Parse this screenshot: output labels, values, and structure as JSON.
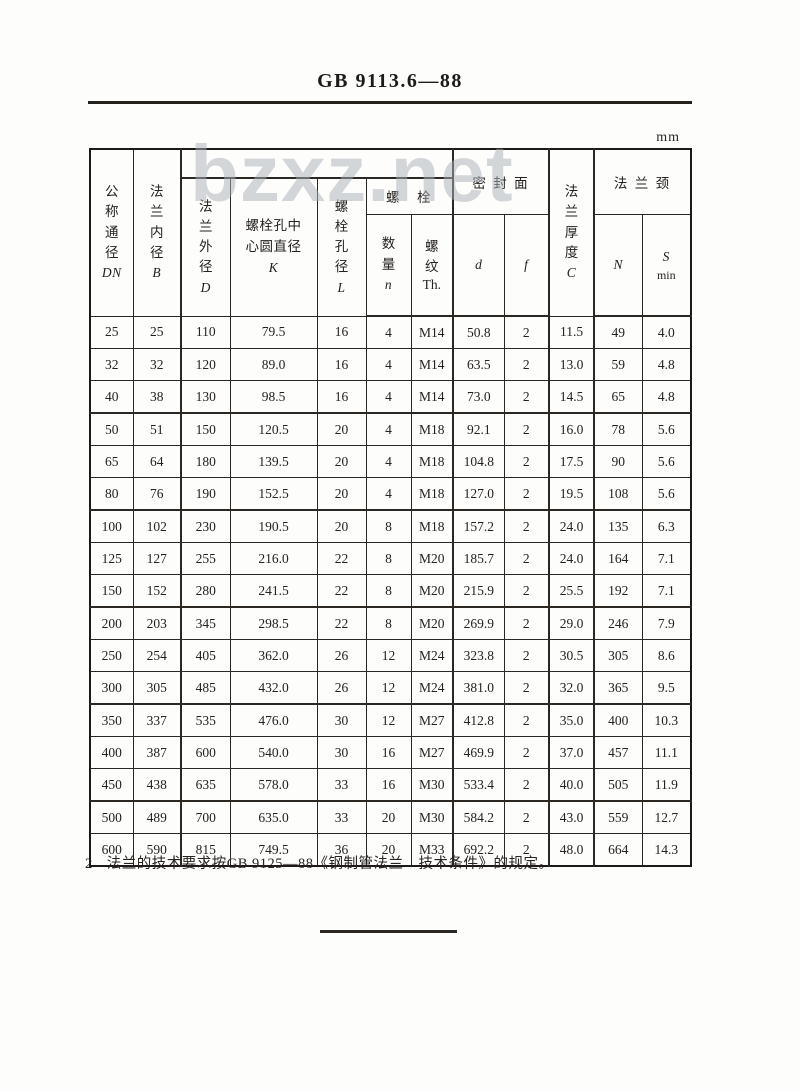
{
  "page": {
    "title": "GB 9113.6—88",
    "unit_label": "mm",
    "watermark": "bzxz.net",
    "note_number": "2",
    "note_text": "法兰的技术要求按GB 9125—88《钢制管法兰　技术条件》的规定。"
  },
  "table": {
    "headers": {
      "dn": {
        "zh": "公称通径",
        "sym": "DN"
      },
      "b": {
        "zh": "法兰内径",
        "sym": "B"
      },
      "d_outer": {
        "zh": "法兰外径",
        "sym": "D"
      },
      "k": {
        "zh_line1": "螺栓孔中",
        "zh_line2": "心圆直径",
        "sym": "K"
      },
      "l": {
        "zh": "螺栓孔径",
        "sym": "L"
      },
      "bolt_group": "螺　栓",
      "qty": {
        "zh": "数量",
        "sym": "n"
      },
      "thread": {
        "zh": "螺纹",
        "sym": "Th."
      },
      "seal_group": "密 封 面",
      "d_seal": "d",
      "f_seal": "f",
      "c": {
        "zh": "法兰厚度",
        "sym": "C"
      },
      "neck_group": "法 兰 颈",
      "n_neck": "N",
      "s": {
        "sym": "S",
        "sub": "min"
      }
    },
    "rows": [
      [
        "25",
        "25",
        "110",
        "79.5",
        "16",
        "4",
        "M14",
        "50.8",
        "2",
        "11.5",
        "49",
        "4.0"
      ],
      [
        "32",
        "32",
        "120",
        "89.0",
        "16",
        "4",
        "M14",
        "63.5",
        "2",
        "13.0",
        "59",
        "4.8"
      ],
      [
        "40",
        "38",
        "130",
        "98.5",
        "16",
        "4",
        "M14",
        "73.0",
        "2",
        "14.5",
        "65",
        "4.8"
      ],
      [
        "50",
        "51",
        "150",
        "120.5",
        "20",
        "4",
        "M18",
        "92.1",
        "2",
        "16.0",
        "78",
        "5.6"
      ],
      [
        "65",
        "64",
        "180",
        "139.5",
        "20",
        "4",
        "M18",
        "104.8",
        "2",
        "17.5",
        "90",
        "5.6"
      ],
      [
        "80",
        "76",
        "190",
        "152.5",
        "20",
        "4",
        "M18",
        "127.0",
        "2",
        "19.5",
        "108",
        "5.6"
      ],
      [
        "100",
        "102",
        "230",
        "190.5",
        "20",
        "8",
        "M18",
        "157.2",
        "2",
        "24.0",
        "135",
        "6.3"
      ],
      [
        "125",
        "127",
        "255",
        "216.0",
        "22",
        "8",
        "M20",
        "185.7",
        "2",
        "24.0",
        "164",
        "7.1"
      ],
      [
        "150",
        "152",
        "280",
        "241.5",
        "22",
        "8",
        "M20",
        "215.9",
        "2",
        "25.5",
        "192",
        "7.1"
      ],
      [
        "200",
        "203",
        "345",
        "298.5",
        "22",
        "8",
        "M20",
        "269.9",
        "2",
        "29.0",
        "246",
        "7.9"
      ],
      [
        "250",
        "254",
        "405",
        "362.0",
        "26",
        "12",
        "M24",
        "323.8",
        "2",
        "30.5",
        "305",
        "8.6"
      ],
      [
        "300",
        "305",
        "485",
        "432.0",
        "26",
        "12",
        "M24",
        "381.0",
        "2",
        "32.0",
        "365",
        "9.5"
      ],
      [
        "350",
        "337",
        "535",
        "476.0",
        "30",
        "12",
        "M27",
        "412.8",
        "2",
        "35.0",
        "400",
        "10.3"
      ],
      [
        "400",
        "387",
        "600",
        "540.0",
        "30",
        "16",
        "M27",
        "469.9",
        "2",
        "37.0",
        "457",
        "11.1"
      ],
      [
        "450",
        "438",
        "635",
        "578.0",
        "33",
        "16",
        "M30",
        "533.4",
        "2",
        "40.0",
        "505",
        "11.9"
      ],
      [
        "500",
        "489",
        "700",
        "635.0",
        "33",
        "20",
        "M30",
        "584.2",
        "2",
        "43.0",
        "559",
        "12.7"
      ],
      [
        "600",
        "590",
        "815",
        "749.5",
        "36",
        "20",
        "M33",
        "692.2",
        "2",
        "48.0",
        "664",
        "14.3"
      ]
    ]
  }
}
